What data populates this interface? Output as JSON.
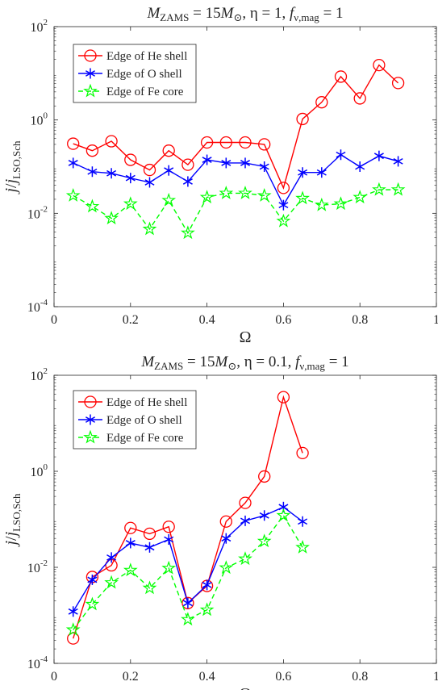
{
  "chart_data": [
    {
      "type": "line",
      "title": "M_ZAMS = 15M_⊙, η = 1, f_ν,mag = 1",
      "title_parts": {
        "m": "M",
        "m_sub": "ZAMS",
        "eq1": " = 15",
        "m2": "M",
        "m2_sub": "⊙",
        "eta_part": ",  η = 1,  ",
        "f": "f",
        "f_sub": "ν,mag",
        "eq2": " = 1"
      },
      "xlabel": "Ω",
      "ylabel": "j/j_LSO,Sch",
      "ylabel_parts": {
        "j1": "j",
        "slash": "/",
        "j2": "j",
        "sub": "LSO,Sch"
      },
      "x_scale": "linear",
      "y_scale": "log",
      "xlim": [
        0,
        1
      ],
      "ylim": [
        0.0001,
        100
      ],
      "x_ticks": [
        "0",
        "0.2",
        "0.4",
        "0.6",
        "0.8",
        "1"
      ],
      "y_ticks": [
        {
          "base": "10",
          "exp": "-4"
        },
        {
          "base": "10",
          "exp": "-2"
        },
        {
          "base": "10",
          "exp": "0"
        },
        {
          "base": "10",
          "exp": "2"
        }
      ],
      "grid": false,
      "legend_position": "top-left",
      "x": [
        0.05,
        0.1,
        0.15,
        0.2,
        0.25,
        0.3,
        0.35,
        0.4,
        0.45,
        0.5,
        0.55,
        0.6,
        0.65,
        0.7,
        0.75,
        0.8,
        0.85,
        0.9
      ],
      "series": [
        {
          "name": "Edge of He shell",
          "color": "#ff0000",
          "marker": "circle",
          "line": "solid",
          "values": [
            0.31,
            0.22,
            0.35,
            0.14,
            0.085,
            0.22,
            0.11,
            0.33,
            0.33,
            0.33,
            0.3,
            0.035,
            1.05,
            2.4,
            8.5,
            2.9,
            15,
            6.2
          ]
        },
        {
          "name": "Edge of O shell",
          "color": "#0000ff",
          "marker": "asterisk",
          "line": "solid",
          "values": [
            0.12,
            0.078,
            0.072,
            0.057,
            0.046,
            0.083,
            0.048,
            0.14,
            0.12,
            0.12,
            0.1,
            0.015,
            0.075,
            0.075,
            0.18,
            0.1,
            0.17,
            0.13
          ]
        },
        {
          "name": "Edge of Fe core",
          "color": "#00ff00",
          "marker": "pentagram",
          "line": "dashed",
          "values": [
            0.024,
            0.014,
            0.0078,
            0.016,
            0.0046,
            0.019,
            0.0038,
            0.022,
            0.027,
            0.027,
            0.024,
            0.0068,
            0.021,
            0.015,
            0.016,
            0.022,
            0.032,
            0.032
          ]
        }
      ]
    },
    {
      "type": "line",
      "title": "M_ZAMS = 15M_⊙, η = 0.1, f_ν,mag = 1",
      "title_parts": {
        "m": "M",
        "m_sub": "ZAMS",
        "eq1": " = 15",
        "m2": "M",
        "m2_sub": "⊙",
        "eta_part": ",  η = 0.1,  ",
        "f": "f",
        "f_sub": "ν,mag",
        "eq2": " = 1"
      },
      "xlabel": "Ω",
      "ylabel": "j/j_LSO,Sch",
      "ylabel_parts": {
        "j1": "j",
        "slash": "/",
        "j2": "j",
        "sub": "LSO,Sch"
      },
      "x_scale": "linear",
      "y_scale": "log",
      "xlim": [
        0,
        1
      ],
      "ylim": [
        0.0001,
        100
      ],
      "x_ticks": [
        "0",
        "0.2",
        "0.4",
        "0.6",
        "0.8",
        "1"
      ],
      "y_ticks": [
        {
          "base": "10",
          "exp": "-4"
        },
        {
          "base": "10",
          "exp": "-2"
        },
        {
          "base": "10",
          "exp": "0"
        },
        {
          "base": "10",
          "exp": "2"
        }
      ],
      "grid": false,
      "legend_position": "top-left",
      "x": [
        0.05,
        0.1,
        0.15,
        0.2,
        0.25,
        0.3,
        0.35,
        0.4,
        0.45,
        0.5,
        0.55,
        0.6,
        0.65
      ],
      "series": [
        {
          "name": "Edge of He shell",
          "color": "#ff0000",
          "marker": "circle",
          "line": "solid",
          "values": [
            0.00033,
            0.0063,
            0.011,
            0.066,
            0.05,
            0.07,
            0.0018,
            0.0041,
            0.09,
            0.22,
            0.78,
            35,
            2.4
          ]
        },
        {
          "name": "Edge of O shell",
          "color": "#0000ff",
          "marker": "asterisk",
          "line": "solid",
          "values": [
            0.0012,
            0.0055,
            0.016,
            0.032,
            0.026,
            0.038,
            0.0018,
            0.0043,
            0.04,
            0.093,
            0.12,
            0.18,
            0.09
          ]
        },
        {
          "name": "Edge of Fe core",
          "color": "#00ff00",
          "marker": "pentagram",
          "line": "dashed",
          "values": [
            0.0005,
            0.0017,
            0.0048,
            0.0087,
            0.0037,
            0.0096,
            0.00082,
            0.0013,
            0.0098,
            0.015,
            0.035,
            0.12,
            0.026
          ]
        }
      ]
    }
  ]
}
